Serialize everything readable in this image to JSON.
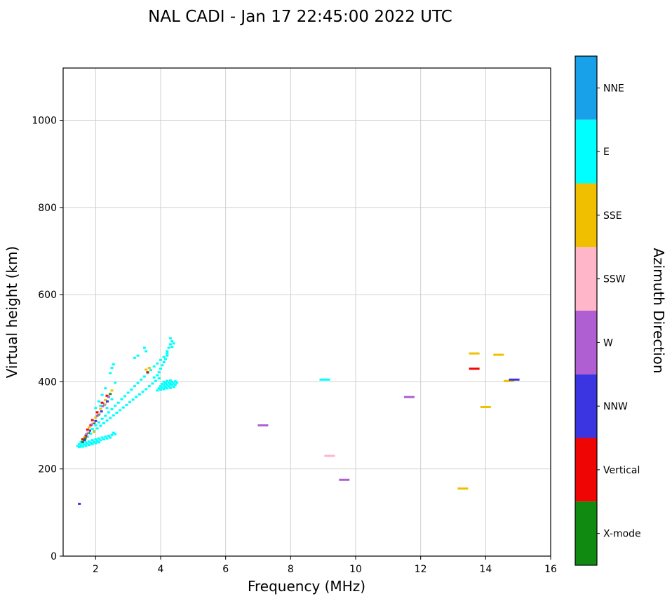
{
  "chart_data": {
    "type": "scatter",
    "title": "NAL CADI - Jan 17 22:45:00 2022 UTC",
    "xlabel": "Frequency (MHz)",
    "ylabel": "Virtual height (km)",
    "xlim": [
      1,
      16
    ],
    "ylim": [
      0,
      1120
    ],
    "xticks": [
      2,
      4,
      6,
      8,
      10,
      12,
      14,
      16
    ],
    "yticks": [
      0,
      200,
      400,
      600,
      800,
      1000
    ],
    "grid": true,
    "grid_color": "#cccccc",
    "colorbar": {
      "label": "Azimuth Direction",
      "categories": [
        {
          "label": "NNE",
          "color": "#18a0e8"
        },
        {
          "label": "E",
          "color": "#00ffff"
        },
        {
          "label": "SSE",
          "color": "#f0c000"
        },
        {
          "label": "SSW",
          "color": "#ffb6c8"
        },
        {
          "label": "W",
          "color": "#b05fd2"
        },
        {
          "label": "NNW",
          "color": "#3a35e0"
        },
        {
          "label": "Vertical",
          "color": "#f00505"
        },
        {
          "label": "X-mode",
          "color": "#118a11"
        }
      ]
    },
    "points": [
      [
        1.45,
        253,
        1
      ],
      [
        1.5,
        250,
        1
      ],
      [
        1.5,
        257,
        1
      ],
      [
        1.55,
        254,
        1
      ],
      [
        1.6,
        251,
        1
      ],
      [
        1.6,
        259,
        1
      ],
      [
        1.65,
        256,
        1
      ],
      [
        1.7,
        253,
        1
      ],
      [
        1.7,
        261,
        1
      ],
      [
        1.75,
        258,
        1
      ],
      [
        1.8,
        255,
        1
      ],
      [
        1.8,
        263,
        1
      ],
      [
        1.85,
        260,
        1
      ],
      [
        1.9,
        257,
        1
      ],
      [
        1.9,
        266,
        1
      ],
      [
        1.95,
        262,
        1
      ],
      [
        2.0,
        259,
        1
      ],
      [
        2.0,
        268,
        1
      ],
      [
        2.05,
        264,
        1
      ],
      [
        2.1,
        261,
        1
      ],
      [
        2.1,
        270,
        1
      ],
      [
        2.15,
        266,
        1
      ],
      [
        2.2,
        272,
        1
      ],
      [
        2.25,
        268,
        1
      ],
      [
        2.3,
        274,
        1
      ],
      [
        2.35,
        270,
        1
      ],
      [
        2.4,
        276,
        1
      ],
      [
        2.45,
        272,
        1
      ],
      [
        2.5,
        278,
        1
      ],
      [
        2.55,
        283,
        1
      ],
      [
        2.6,
        280,
        1
      ],
      [
        1.55,
        262,
        1
      ],
      [
        1.65,
        268,
        1
      ],
      [
        1.75,
        274,
        1
      ],
      [
        1.85,
        281,
        1
      ],
      [
        1.95,
        287,
        1
      ],
      [
        2.05,
        293,
        1
      ],
      [
        2.15,
        299,
        1
      ],
      [
        2.25,
        305,
        1
      ],
      [
        2.35,
        311,
        1
      ],
      [
        2.45,
        317,
        1
      ],
      [
        2.55,
        323,
        1
      ],
      [
        2.65,
        329,
        1
      ],
      [
        2.75,
        335,
        1
      ],
      [
        2.85,
        341,
        1
      ],
      [
        2.95,
        347,
        1
      ],
      [
        3.05,
        353,
        1
      ],
      [
        3.15,
        359,
        1
      ],
      [
        3.25,
        365,
        1
      ],
      [
        3.35,
        371,
        1
      ],
      [
        3.45,
        377,
        1
      ],
      [
        3.55,
        383,
        1
      ],
      [
        3.65,
        390,
        1
      ],
      [
        3.75,
        396,
        1
      ],
      [
        3.85,
        402,
        1
      ],
      [
        3.95,
        408,
        1
      ],
      [
        1.7,
        277,
        1
      ],
      [
        1.8,
        285,
        1
      ],
      [
        1.9,
        292,
        1
      ],
      [
        2.0,
        300,
        1
      ],
      [
        2.1,
        307,
        1
      ],
      [
        2.2,
        315,
        1
      ],
      [
        2.3,
        322,
        1
      ],
      [
        2.4,
        330,
        1
      ],
      [
        2.5,
        337,
        1
      ],
      [
        2.6,
        345,
        1
      ],
      [
        2.7,
        352,
        1
      ],
      [
        2.8,
        360,
        1
      ],
      [
        2.9,
        367,
        1
      ],
      [
        3.0,
        375,
        1
      ],
      [
        3.1,
        382,
        1
      ],
      [
        3.2,
        390,
        1
      ],
      [
        3.3,
        397,
        1
      ],
      [
        3.4,
        405,
        1
      ],
      [
        3.5,
        412,
        1
      ],
      [
        3.6,
        420,
        1
      ],
      [
        3.7,
        427,
        1
      ],
      [
        3.8,
        435,
        1
      ],
      [
        3.9,
        442,
        1
      ],
      [
        4.0,
        450,
        1
      ],
      [
        4.1,
        457,
        1
      ],
      [
        4.2,
        465,
        1
      ],
      [
        3.9,
        380,
        1
      ],
      [
        3.95,
        385,
        1
      ],
      [
        4.0,
        382,
        1
      ],
      [
        4.0,
        390,
        1
      ],
      [
        4.05,
        387,
        1
      ],
      [
        4.05,
        395,
        1
      ],
      [
        4.1,
        383,
        1
      ],
      [
        4.1,
        392,
        1
      ],
      [
        4.1,
        400,
        1
      ],
      [
        4.15,
        388,
        1
      ],
      [
        4.15,
        397,
        1
      ],
      [
        4.2,
        385,
        1
      ],
      [
        4.2,
        393,
        1
      ],
      [
        4.2,
        402,
        1
      ],
      [
        4.25,
        390,
        1
      ],
      [
        4.25,
        398,
        1
      ],
      [
        4.3,
        386,
        1
      ],
      [
        4.3,
        395,
        1
      ],
      [
        4.3,
        403,
        1
      ],
      [
        4.35,
        392,
        1
      ],
      [
        4.35,
        400,
        1
      ],
      [
        4.4,
        388,
        1
      ],
      [
        4.4,
        396,
        1
      ],
      [
        4.45,
        393,
        1
      ],
      [
        4.45,
        401,
        1
      ],
      [
        4.5,
        398,
        1
      ],
      [
        4.2,
        470,
        1
      ],
      [
        4.25,
        478,
        1
      ],
      [
        4.3,
        486,
        1
      ],
      [
        4.35,
        493,
        1
      ],
      [
        4.3,
        500,
        1
      ],
      [
        4.35,
        480,
        1
      ],
      [
        4.4,
        488,
        1
      ],
      [
        4.2,
        460,
        1
      ],
      [
        4.15,
        452,
        1
      ],
      [
        4.1,
        445,
        1
      ],
      [
        4.05,
        438,
        1
      ],
      [
        4.0,
        430,
        1
      ],
      [
        3.95,
        422,
        1
      ],
      [
        3.9,
        415,
        1
      ],
      [
        3.8,
        410,
        1
      ],
      [
        2.0,
        340,
        1
      ],
      [
        2.1,
        355,
        1
      ],
      [
        2.2,
        370,
        1
      ],
      [
        2.3,
        385,
        1
      ],
      [
        2.15,
        345,
        1
      ],
      [
        2.35,
        340,
        1
      ],
      [
        2.5,
        360,
        1
      ],
      [
        2.45,
        420,
        1
      ],
      [
        2.5,
        432,
        1
      ],
      [
        2.55,
        440,
        1
      ],
      [
        2.6,
        398,
        1
      ],
      [
        3.3,
        460,
        1
      ],
      [
        3.5,
        478,
        1
      ],
      [
        3.55,
        470,
        1
      ],
      [
        3.2,
        455,
        1
      ],
      [
        1.6,
        268,
        6
      ],
      [
        1.75,
        290,
        6
      ],
      [
        1.9,
        312,
        6
      ],
      [
        2.05,
        330,
        6
      ],
      [
        2.2,
        352,
        6
      ],
      [
        1.7,
        275,
        6
      ],
      [
        2.35,
        368,
        6
      ],
      [
        1.85,
        300,
        6
      ],
      [
        3.6,
        422,
        6
      ],
      [
        1.65,
        272,
        2
      ],
      [
        1.8,
        295,
        2
      ],
      [
        2.0,
        318,
        2
      ],
      [
        2.15,
        338,
        2
      ],
      [
        2.3,
        358,
        2
      ],
      [
        2.5,
        380,
        2
      ],
      [
        1.95,
        285,
        2
      ],
      [
        3.55,
        428,
        2
      ],
      [
        3.65,
        432,
        2
      ],
      [
        1.6,
        262,
        7
      ],
      [
        1.78,
        283,
        7
      ],
      [
        1.95,
        305,
        7
      ],
      [
        2.1,
        325,
        7
      ],
      [
        2.28,
        348,
        7
      ],
      [
        2.45,
        372,
        7
      ],
      [
        1.68,
        270,
        7
      ],
      [
        1.72,
        280,
        4
      ],
      [
        1.88,
        302,
        4
      ],
      [
        2.05,
        322,
        4
      ],
      [
        2.22,
        344,
        4
      ],
      [
        2.4,
        365,
        4
      ],
      [
        1.66,
        266,
        5
      ],
      [
        1.82,
        288,
        5
      ],
      [
        2.0,
        310,
        5
      ],
      [
        2.18,
        332,
        5
      ],
      [
        2.36,
        355,
        5
      ],
      [
        1.5,
        120,
        5
      ],
      [
        1.76,
        286,
        3
      ],
      [
        1.92,
        308,
        3
      ],
      [
        2.12,
        328,
        3
      ],
      [
        2.3,
        350,
        3
      ]
    ],
    "dashes": [
      [
        7.15,
        300,
        4
      ],
      [
        9.05,
        405,
        1
      ],
      [
        9.2,
        230,
        3
      ],
      [
        9.65,
        175,
        4
      ],
      [
        11.65,
        365,
        4
      ],
      [
        13.3,
        155,
        2
      ],
      [
        13.65,
        465,
        2
      ],
      [
        13.65,
        430,
        6
      ],
      [
        14.0,
        342,
        2
      ],
      [
        14.4,
        462,
        2
      ],
      [
        14.72,
        402,
        2
      ],
      [
        14.88,
        405,
        5
      ]
    ]
  }
}
